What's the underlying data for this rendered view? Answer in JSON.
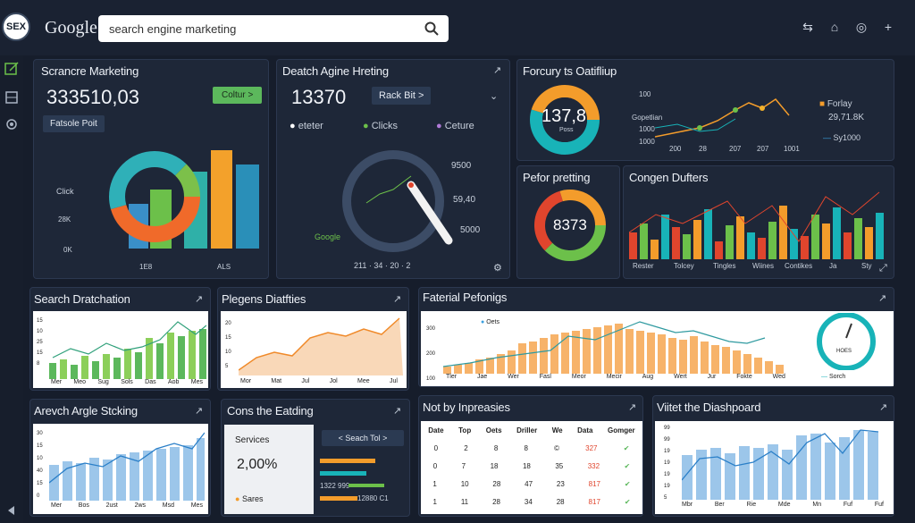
{
  "header": {
    "logo": "SEX",
    "brand": "Google",
    "search_value": "search engine marketing"
  },
  "p1": {
    "title": "Scrancre Marketing",
    "value": "333510,03",
    "green_btn": "Coltur >",
    "dark_btn": "Fatsole Poit",
    "lbl_click": "Click",
    "lbl_28k": "28K",
    "lbl_0k": "0K",
    "x1": "1E8",
    "x2": "ALS"
  },
  "p2": {
    "title": "Deatch Agine Hreting",
    "value": "13370",
    "btn": "Rack Bit >",
    "legend": [
      "eteter",
      "Clicks",
      "Ceture"
    ],
    "r1": "9500",
    "r2": "59,40",
    "r3": "5000",
    "g": "Google",
    "bottom": "211 · 34 · 20 · 2"
  },
  "p3": {
    "title": "Forcury ts Oatifliup",
    "donut": "137,8",
    "donut_sub": "Poss",
    "y1": "100",
    "y2": "Gopetlian",
    "y3": "1000",
    "y4": "1000",
    "xs": [
      "200",
      "28",
      "207",
      "207",
      "1001"
    ],
    "leg1": "Forlay",
    "leg2": "29,71.8K",
    "leg3": "Sy1000"
  },
  "p4": {
    "title": "Pefor pretting",
    "value": "8373"
  },
  "p5": {
    "title": "Congen Dufters",
    "xs": [
      "Rester",
      "Tolcey",
      "Tingles",
      "Wiines",
      "Contikes",
      "Ja",
      "Sty"
    ]
  },
  "p6": {
    "title": "Search Dratchation",
    "ys": [
      "15",
      "10",
      "25",
      "15",
      "8"
    ],
    "xs": [
      "Mer",
      "Meo",
      "Sug",
      "Sols",
      "Das",
      "Aob",
      "Mes"
    ]
  },
  "p7": {
    "title": "Plegens Diatfties",
    "ys": [
      "20",
      "15",
      "10",
      "5"
    ],
    "xs": [
      "Mor",
      "Mat",
      "Jul",
      "Jol",
      "Mee",
      "Jul"
    ]
  },
  "p8": {
    "title": "Faterial Pefonigs",
    "leg": "Oets",
    "ys": [
      "300",
      "200",
      "100"
    ],
    "xs": [
      "Tler",
      "Jae",
      "Wer",
      "Fasl",
      "Meor",
      "Mecir",
      "Aug",
      "Wert",
      "Jur",
      "Fokte",
      "Wed"
    ],
    "gauge": "HOES",
    "gauge_lbl": "Sorch"
  },
  "p9": {
    "title": "Arevch Argle Stcking",
    "ys": [
      "30",
      "15",
      "10",
      "40",
      "15",
      "0"
    ],
    "xs": [
      "Mer",
      "Bos",
      "2ust",
      "2ws",
      "Msd",
      "Mes"
    ]
  },
  "p10": {
    "title": "Cons the Eatding",
    "services": "Services",
    "pct": "2,00%",
    "sares": "Sares",
    "search_btn": "< Seach Tol >",
    "row1": "1322 999",
    "row2": "12880 C1"
  },
  "p11": {
    "title": "Not by Inpreasies",
    "head": [
      "Date",
      "Top",
      "Oets",
      "Driller",
      "We",
      "Data",
      "Gomger"
    ],
    "rows": [
      [
        "0",
        "2",
        "8",
        "8",
        "©",
        "327"
      ],
      [
        "0",
        "7",
        "18",
        "18",
        "35",
        "332"
      ],
      [
        "1",
        "10",
        "28",
        "47",
        "23",
        "817"
      ],
      [
        "1",
        "11",
        "28",
        "34",
        "28",
        "817"
      ]
    ]
  },
  "p12": {
    "title": "Viitet the Diashpoard",
    "ys": [
      "99",
      "99",
      "19",
      "19",
      "19",
      "19",
      "5"
    ],
    "xs": [
      "Mbr",
      "Ber",
      "Rie",
      "Mde",
      "Mn",
      "Fuf",
      "Fuf"
    ]
  },
  "colors": {
    "orange": "#f39c2b",
    "teal": "#18b3b8",
    "green": "#6cc04a",
    "red": "#e0452d",
    "blue": "#3aa0e0"
  }
}
